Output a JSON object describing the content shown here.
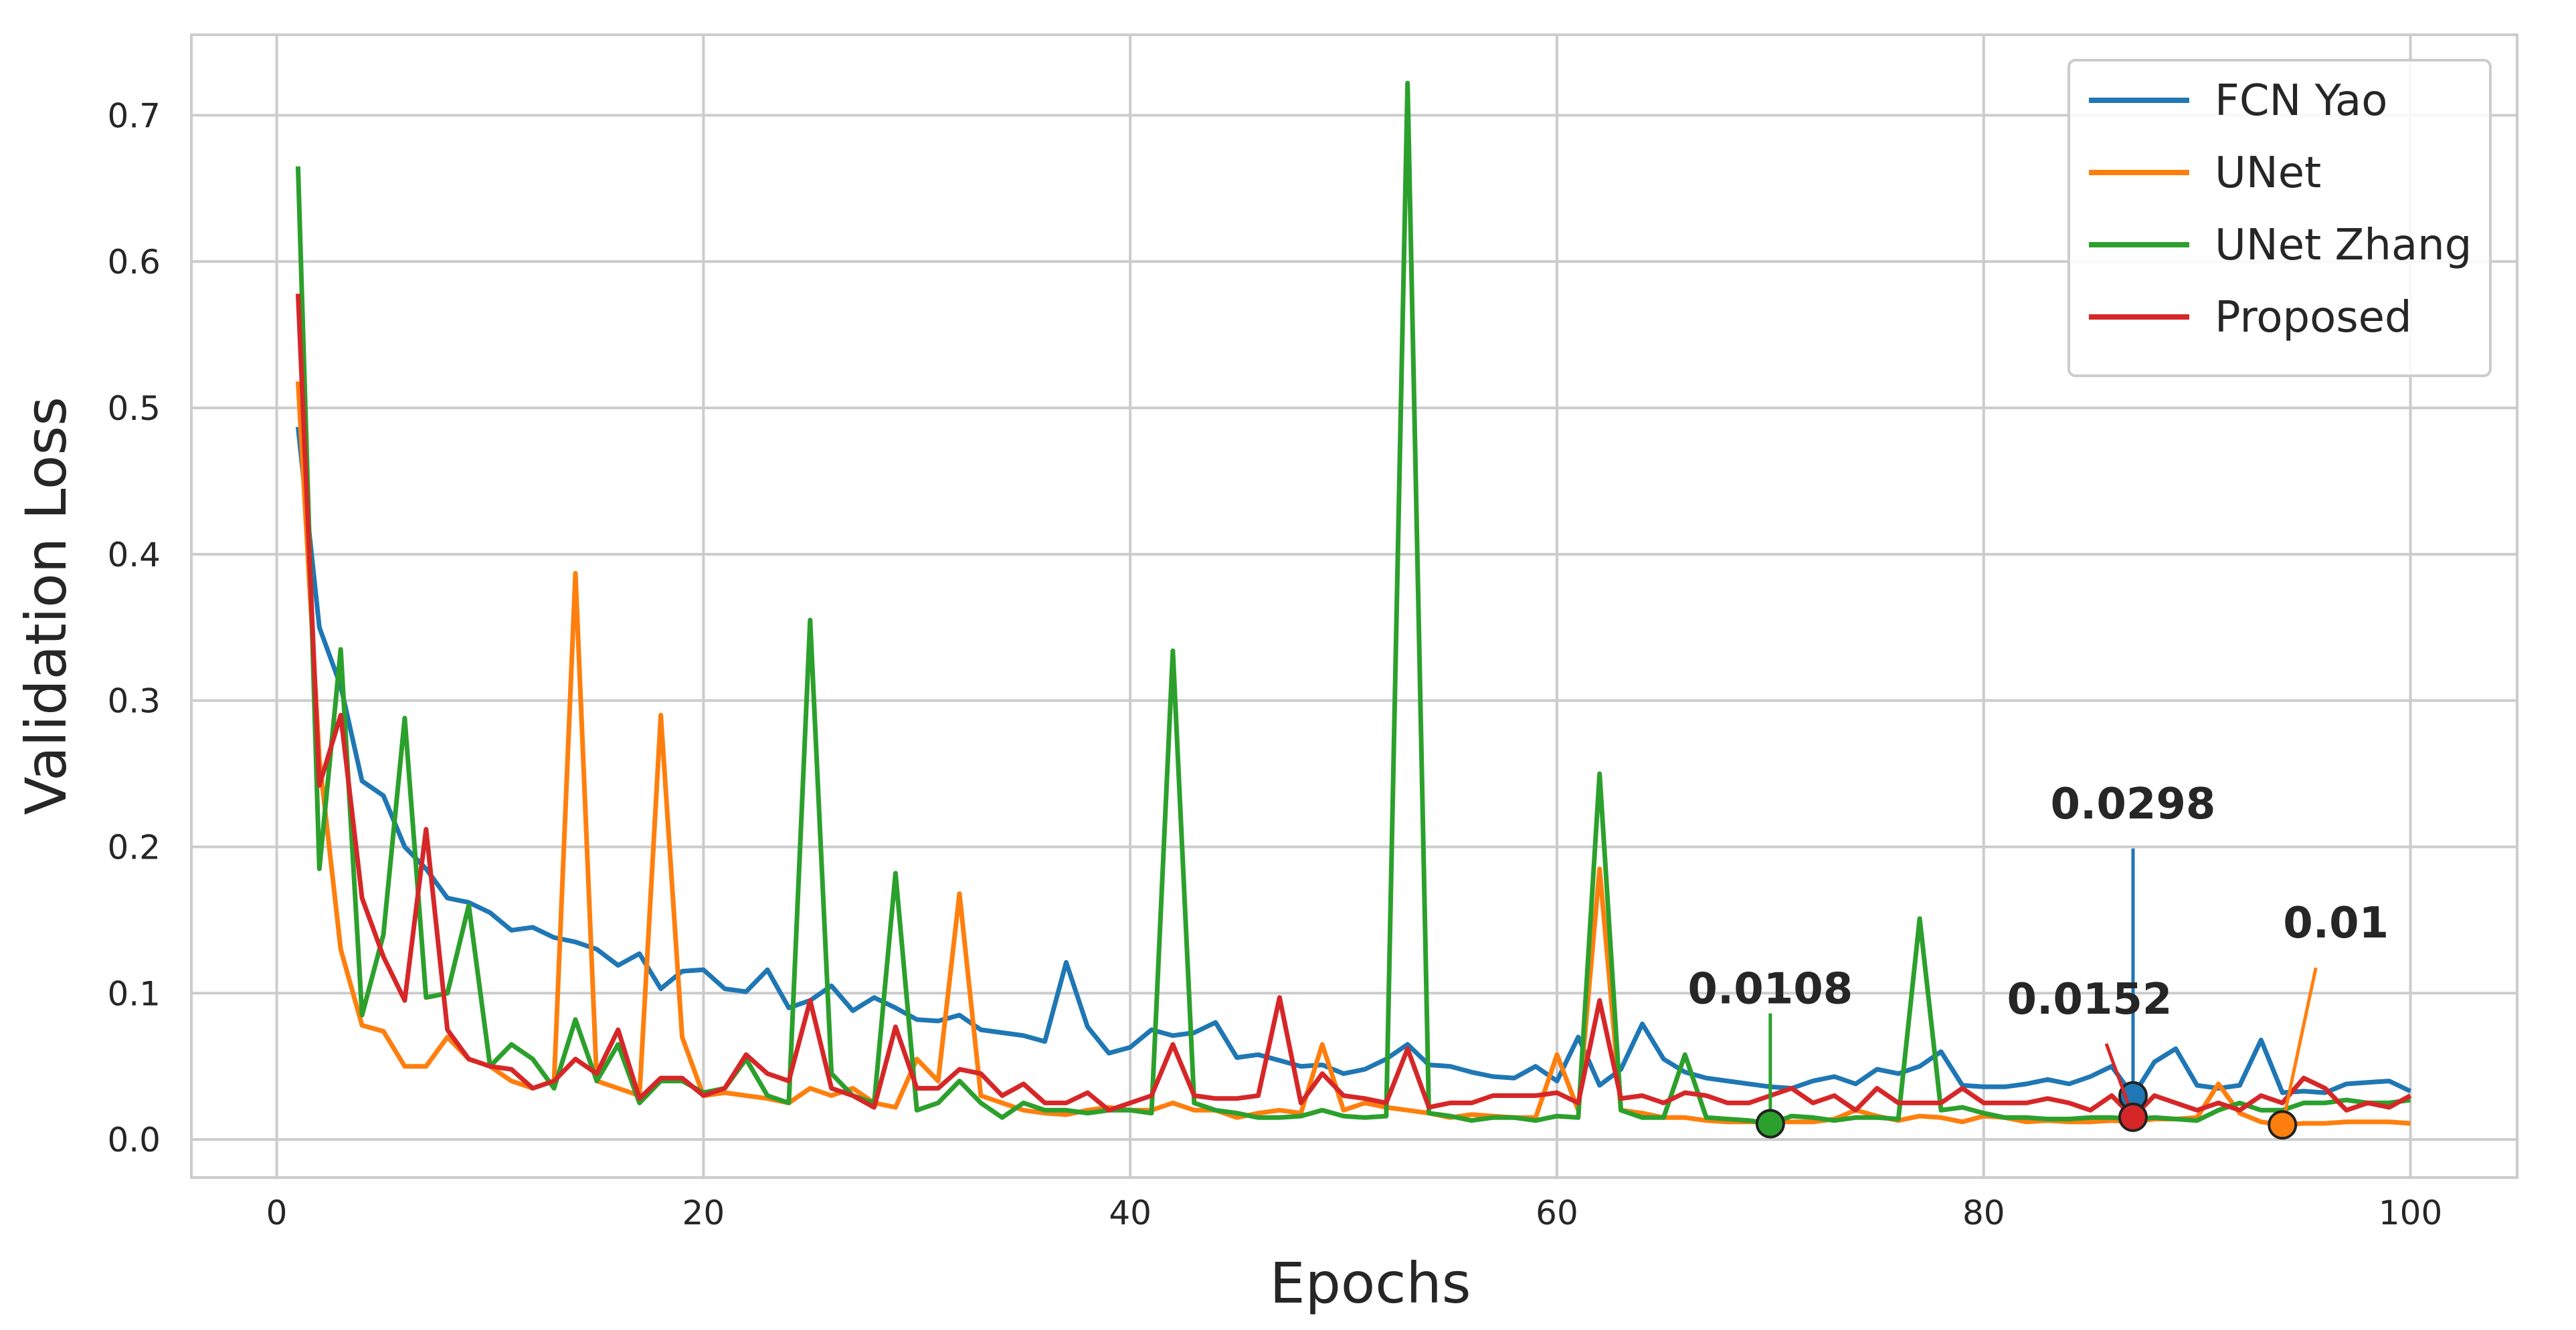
{
  "chart_data": {
    "type": "line",
    "title": "",
    "xlabel": "Epochs",
    "ylabel": "Validation Loss",
    "xlim": [
      -4,
      105
    ],
    "ylim": [
      -0.026,
      0.755
    ],
    "x_ticks": [
      0,
      20,
      40,
      60,
      80,
      100
    ],
    "y_ticks": [
      0.0,
      0.1,
      0.2,
      0.3,
      0.4,
      0.5,
      0.6,
      0.7
    ],
    "x_tick_labels": [
      "0",
      "20",
      "40",
      "60",
      "80",
      "100"
    ],
    "y_tick_labels": [
      "0.0",
      "0.1",
      "0.2",
      "0.3",
      "0.4",
      "0.5",
      "0.6",
      "0.7"
    ],
    "grid": true,
    "legend_position": "top-right",
    "x": [
      1,
      2,
      3,
      4,
      5,
      6,
      7,
      8,
      9,
      10,
      11,
      12,
      13,
      14,
      15,
      16,
      17,
      18,
      19,
      20,
      21,
      22,
      23,
      24,
      25,
      26,
      27,
      28,
      29,
      30,
      31,
      32,
      33,
      34,
      35,
      36,
      37,
      38,
      39,
      40,
      41,
      42,
      43,
      44,
      45,
      46,
      47,
      48,
      49,
      50,
      51,
      52,
      53,
      54,
      55,
      56,
      57,
      58,
      59,
      60,
      61,
      62,
      63,
      64,
      65,
      66,
      67,
      68,
      69,
      70,
      71,
      72,
      73,
      74,
      75,
      76,
      77,
      78,
      79,
      80,
      81,
      82,
      83,
      84,
      85,
      86,
      87,
      88,
      89,
      90,
      91,
      92,
      93,
      94,
      95,
      96,
      97,
      98,
      99,
      100
    ],
    "series": [
      {
        "name": "FCN Yao",
        "color": "#1f77b4",
        "values": [
          0.487,
          0.35,
          0.31,
          0.245,
          0.235,
          0.2,
          0.185,
          0.165,
          0.162,
          0.155,
          0.143,
          0.145,
          0.138,
          0.135,
          0.13,
          0.119,
          0.127,
          0.103,
          0.115,
          0.116,
          0.103,
          0.101,
          0.116,
          0.09,
          0.095,
          0.105,
          0.088,
          0.097,
          0.09,
          0.082,
          0.081,
          0.085,
          0.075,
          0.073,
          0.071,
          0.067,
          0.121,
          0.077,
          0.059,
          0.063,
          0.075,
          0.071,
          0.073,
          0.08,
          0.056,
          0.058,
          0.054,
          0.05,
          0.051,
          0.045,
          0.048,
          0.055,
          0.065,
          0.051,
          0.05,
          0.046,
          0.043,
          0.042,
          0.05,
          0.04,
          0.07,
          0.037,
          0.048,
          0.079,
          0.055,
          0.046,
          0.042,
          0.04,
          0.038,
          0.036,
          0.035,
          0.04,
          0.043,
          0.038,
          0.048,
          0.045,
          0.05,
          0.06,
          0.037,
          0.036,
          0.036,
          0.038,
          0.041,
          0.038,
          0.043,
          0.05,
          0.0298,
          0.053,
          0.062,
          0.037,
          0.035,
          0.037,
          0.068,
          0.032,
          0.033,
          0.032,
          0.038,
          0.039,
          0.04,
          0.033
        ]
      },
      {
        "name": "UNet",
        "color": "#ff7f0e",
        "values": [
          0.518,
          0.26,
          0.13,
          0.078,
          0.074,
          0.05,
          0.05,
          0.07,
          0.055,
          0.05,
          0.04,
          0.035,
          0.04,
          0.387,
          0.04,
          0.035,
          0.03,
          0.29,
          0.07,
          0.03,
          0.032,
          0.03,
          0.028,
          0.025,
          0.035,
          0.03,
          0.035,
          0.025,
          0.022,
          0.055,
          0.04,
          0.168,
          0.03,
          0.025,
          0.02,
          0.018,
          0.017,
          0.02,
          0.022,
          0.02,
          0.02,
          0.025,
          0.02,
          0.02,
          0.015,
          0.018,
          0.02,
          0.018,
          0.065,
          0.02,
          0.025,
          0.022,
          0.02,
          0.018,
          0.015,
          0.017,
          0.016,
          0.015,
          0.015,
          0.058,
          0.02,
          0.185,
          0.02,
          0.018,
          0.015,
          0.015,
          0.013,
          0.012,
          0.012,
          0.012,
          0.012,
          0.012,
          0.014,
          0.02,
          0.016,
          0.013,
          0.016,
          0.015,
          0.012,
          0.016,
          0.015,
          0.012,
          0.013,
          0.012,
          0.012,
          0.013,
          0.012,
          0.014,
          0.014,
          0.015,
          0.038,
          0.018,
          0.012,
          0.01,
          0.011,
          0.011,
          0.012,
          0.012,
          0.012,
          0.011
        ]
      },
      {
        "name": "UNet Zhang",
        "color": "#2ca02c",
        "values": [
          0.665,
          0.185,
          0.335,
          0.085,
          0.14,
          0.288,
          0.097,
          0.1,
          0.16,
          0.05,
          0.065,
          0.055,
          0.035,
          0.082,
          0.04,
          0.065,
          0.025,
          0.04,
          0.04,
          0.032,
          0.035,
          0.055,
          0.03,
          0.025,
          0.355,
          0.045,
          0.03,
          0.025,
          0.182,
          0.02,
          0.025,
          0.04,
          0.025,
          0.015,
          0.025,
          0.02,
          0.02,
          0.018,
          0.02,
          0.02,
          0.018,
          0.334,
          0.025,
          0.02,
          0.018,
          0.015,
          0.015,
          0.016,
          0.02,
          0.016,
          0.015,
          0.016,
          0.722,
          0.018,
          0.016,
          0.013,
          0.015,
          0.015,
          0.013,
          0.016,
          0.015,
          0.25,
          0.02,
          0.015,
          0.015,
          0.058,
          0.015,
          0.014,
          0.013,
          0.0108,
          0.016,
          0.015,
          0.013,
          0.015,
          0.015,
          0.014,
          0.151,
          0.02,
          0.022,
          0.018,
          0.015,
          0.015,
          0.014,
          0.014,
          0.015,
          0.015,
          0.014,
          0.015,
          0.014,
          0.013,
          0.02,
          0.025,
          0.02,
          0.02,
          0.025,
          0.025,
          0.027,
          0.025,
          0.025,
          0.027
        ]
      },
      {
        "name": "Proposed",
        "color": "#d62728",
        "values": [
          0.578,
          0.242,
          0.29,
          0.165,
          0.125,
          0.095,
          0.212,
          0.075,
          0.055,
          0.05,
          0.048,
          0.035,
          0.04,
          0.055,
          0.045,
          0.075,
          0.028,
          0.042,
          0.042,
          0.03,
          0.035,
          0.058,
          0.045,
          0.04,
          0.095,
          0.035,
          0.03,
          0.022,
          0.077,
          0.035,
          0.035,
          0.048,
          0.045,
          0.03,
          0.038,
          0.025,
          0.025,
          0.032,
          0.02,
          0.025,
          0.03,
          0.065,
          0.03,
          0.028,
          0.028,
          0.03,
          0.097,
          0.025,
          0.045,
          0.03,
          0.028,
          0.025,
          0.062,
          0.022,
          0.025,
          0.025,
          0.03,
          0.03,
          0.03,
          0.032,
          0.025,
          0.095,
          0.028,
          0.03,
          0.025,
          0.032,
          0.03,
          0.025,
          0.025,
          0.03,
          0.035,
          0.025,
          0.03,
          0.02,
          0.035,
          0.025,
          0.025,
          0.025,
          0.035,
          0.025,
          0.025,
          0.025,
          0.028,
          0.025,
          0.02,
          0.03,
          0.0152,
          0.03,
          0.025,
          0.02,
          0.025,
          0.02,
          0.03,
          0.025,
          0.042,
          0.035,
          0.02,
          0.025,
          0.022,
          0.03
        ]
      }
    ],
    "annotations": [
      {
        "series": "UNet Zhang",
        "x": 70,
        "y": 0.0108,
        "text": "0.0108"
      },
      {
        "series": "FCN Yao",
        "x": 87,
        "y": 0.0298,
        "text": "0.0298"
      },
      {
        "series": "Proposed",
        "x": 87,
        "y": 0.0152,
        "text": "0.0152"
      },
      {
        "series": "UNet",
        "x": 94,
        "y": 0.01,
        "text": "0.01"
      }
    ]
  }
}
